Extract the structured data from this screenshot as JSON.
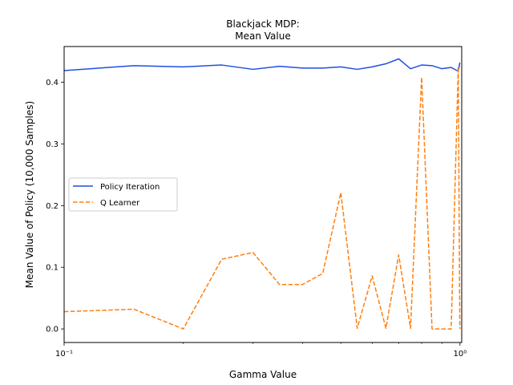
{
  "chart_data": {
    "type": "line",
    "title": "Blackjack MDP:\nMean Value",
    "title_lines": [
      "Blackjack MDP:",
      "Mean Value"
    ],
    "xlabel": "Gamma Value",
    "ylabel": "Mean Value of Policy (10,000 Samples)",
    "xscale": "log",
    "xlim": [
      0.1,
      1.01
    ],
    "ylim": [
      -0.022,
      0.458
    ],
    "xticks_major": [
      {
        "value": 0.1,
        "label": "10⁻¹"
      },
      {
        "value": 1.0,
        "label": "10⁰"
      }
    ],
    "xticks_minor": [
      0.2,
      0.3,
      0.4,
      0.5,
      0.6,
      0.7,
      0.8,
      0.9
    ],
    "yticks": [
      {
        "value": 0.0,
        "label": "0.0"
      },
      {
        "value": 0.1,
        "label": "0.1"
      },
      {
        "value": 0.2,
        "label": "0.2"
      },
      {
        "value": 0.3,
        "label": "0.3"
      },
      {
        "value": 0.4,
        "label": "0.4"
      }
    ],
    "grid": false,
    "legend_position": "center-left",
    "series": [
      {
        "name": "Policy Iteration",
        "color": "#1f4fe0",
        "style": "solid",
        "x": [
          0.1,
          0.15,
          0.2,
          0.25,
          0.3,
          0.35,
          0.4,
          0.45,
          0.5,
          0.55,
          0.6,
          0.65,
          0.7,
          0.75,
          0.8,
          0.85,
          0.9,
          0.95,
          0.99,
          0.999
        ],
        "y": [
          0.419,
          0.427,
          0.425,
          0.428,
          0.421,
          0.426,
          0.423,
          0.423,
          0.425,
          0.421,
          0.425,
          0.43,
          0.438,
          0.422,
          0.428,
          0.427,
          0.422,
          0.424,
          0.418,
          0.432
        ]
      },
      {
        "name": "Q Learner",
        "color": "#ff7f0e",
        "style": "dashed",
        "x": [
          0.1,
          0.15,
          0.2,
          0.25,
          0.3,
          0.35,
          0.4,
          0.45,
          0.5,
          0.55,
          0.6,
          0.65,
          0.7,
          0.75,
          0.8,
          0.85,
          0.9,
          0.95,
          0.99,
          0.999
        ],
        "y": [
          0.028,
          0.032,
          0.0,
          0.113,
          0.124,
          0.072,
          0.072,
          0.09,
          0.221,
          0.001,
          0.086,
          0.001,
          0.12,
          0.001,
          0.408,
          0.0,
          0.0,
          0.0,
          0.425,
          0.0
        ]
      }
    ]
  }
}
